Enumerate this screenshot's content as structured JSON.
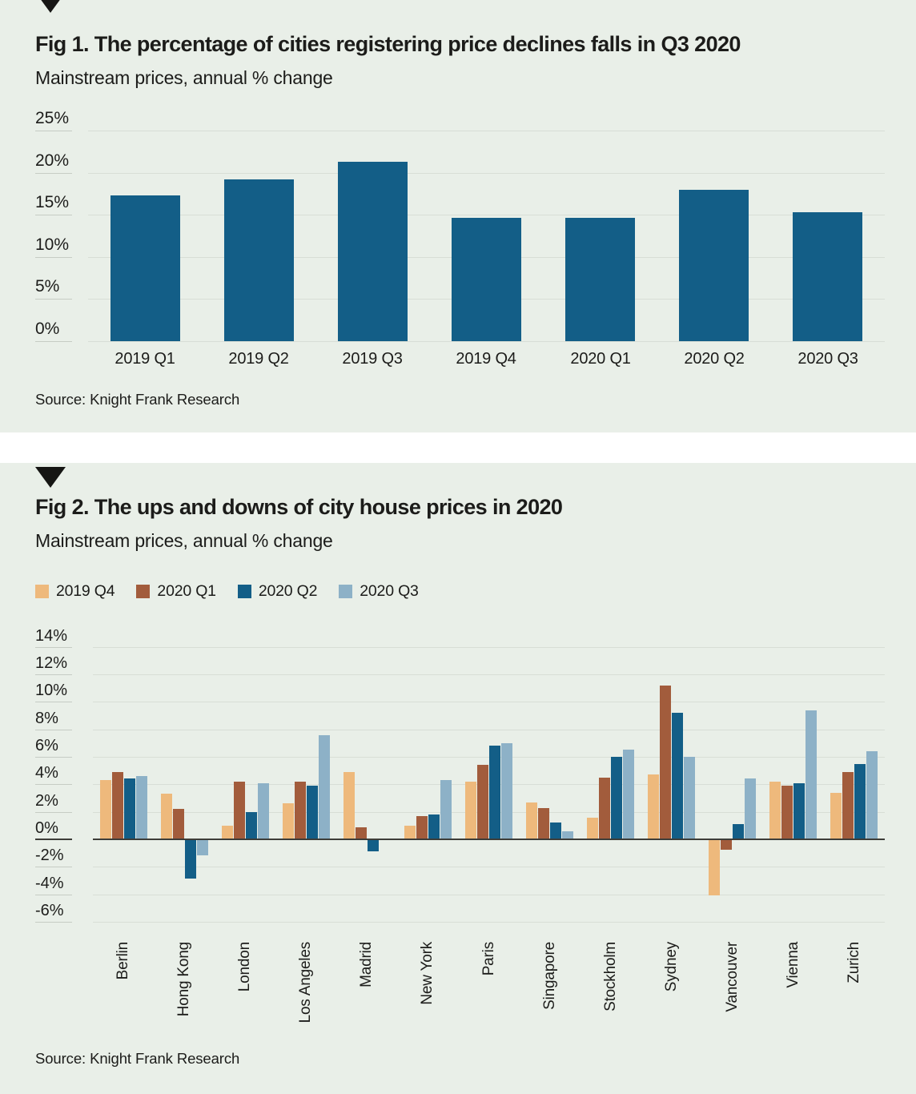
{
  "colors": {
    "panel_background": "#e9efe8",
    "page_background": "#ffffff",
    "gridline": "#d8ded6",
    "zero_axis": "#3d3d39",
    "text": "#1c1c1a",
    "dark_blue": "#135e87",
    "tan": "#eeb97c",
    "brown": "#a25c3c",
    "light_blue": "#8db1c7"
  },
  "chart_data": [
    {
      "id": "fig1",
      "type": "bar",
      "title": "Fig 1. The percentage of cities registering price declines falls in Q3 2020",
      "subtitle": "Mainstream prices, annual % change",
      "source": "Source: Knight Frank Research",
      "categories": [
        "2019 Q1",
        "2019 Q2",
        "2019 Q3",
        "2019 Q4",
        "2020 Q1",
        "2020 Q2",
        "2020 Q3"
      ],
      "values": [
        17.3,
        19.2,
        21.3,
        14.6,
        14.6,
        18.0,
        15.3
      ],
      "bar_color": "#135e87",
      "xlabel": "",
      "ylabel": "",
      "ylim": [
        0,
        25
      ],
      "yticks": [
        25,
        20,
        15,
        10,
        5,
        0
      ],
      "grid": true,
      "legend_position": "none"
    },
    {
      "id": "fig2",
      "type": "bar",
      "title": "Fig 2. The ups and downs of city house prices in 2020",
      "subtitle": "Mainstream prices, annual % change",
      "source": "Source: Knight Frank Research",
      "categories": [
        "Berlin",
        "Hong Kong",
        "London",
        "Los Angeles",
        "Madrid",
        "New York",
        "Paris",
        "Singapore",
        "Stockholm",
        "Sydney",
        "Vancouver",
        "Vienna",
        "Zurich"
      ],
      "series": [
        {
          "name": "2019 Q4",
          "color": "#eeb97c",
          "values": [
            4.3,
            3.3,
            1.0,
            2.6,
            4.9,
            1.0,
            4.2,
            2.7,
            1.6,
            4.7,
            -4.0,
            4.2,
            3.4
          ]
        },
        {
          "name": "2020 Q1",
          "color": "#a25c3c",
          "values": [
            4.9,
            2.2,
            4.2,
            4.2,
            0.9,
            1.7,
            5.4,
            2.3,
            4.5,
            11.2,
            -0.7,
            3.9,
            4.9
          ]
        },
        {
          "name": "2020 Q2",
          "color": "#135e87",
          "values": [
            4.4,
            -2.8,
            2.0,
            3.9,
            -0.8,
            1.8,
            6.8,
            1.2,
            6.0,
            9.2,
            1.1,
            4.1,
            5.5
          ]
        },
        {
          "name": "2020 Q3",
          "color": "#8db1c7",
          "values": [
            4.6,
            -1.1,
            4.1,
            7.6,
            0.0,
            4.3,
            7.0,
            0.6,
            6.5,
            6.0,
            4.4,
            9.4,
            6.4
          ]
        }
      ],
      "xlabel": "",
      "ylabel": "",
      "ylim": [
        -6,
        14
      ],
      "yticks": [
        14,
        12,
        10,
        8,
        6,
        4,
        2,
        0,
        -2,
        -4,
        -6
      ],
      "grid": true,
      "legend_position": "top"
    }
  ]
}
